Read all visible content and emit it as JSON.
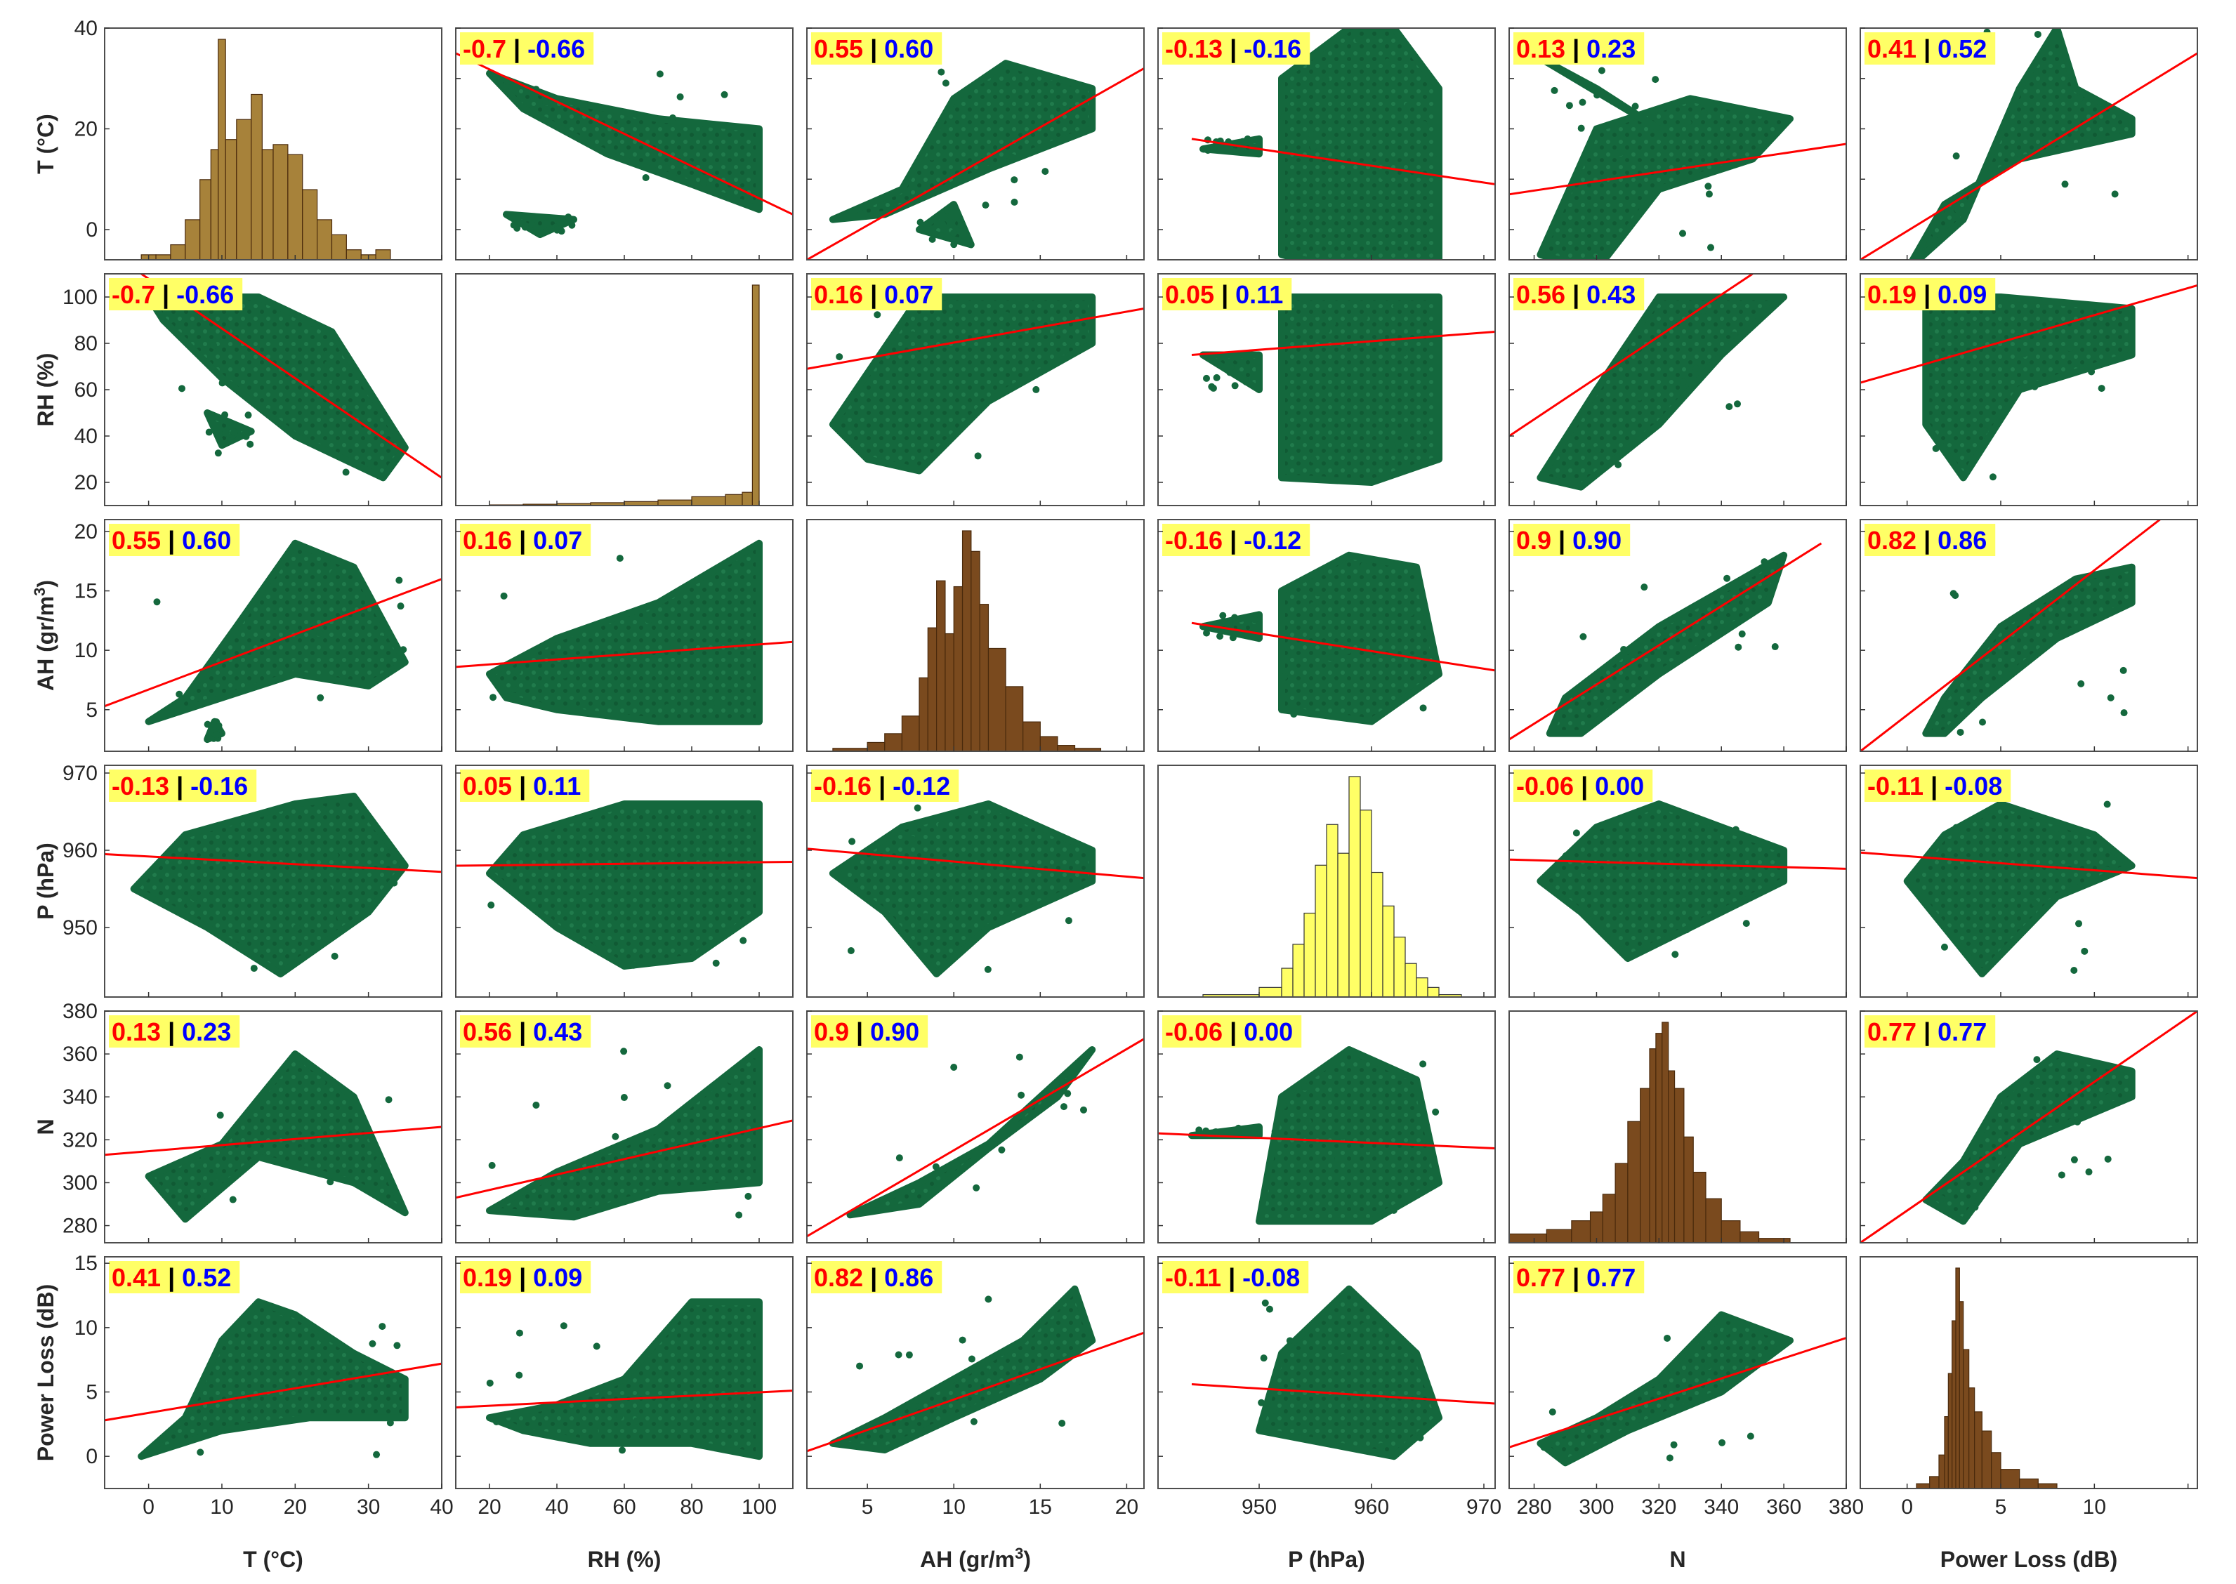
{
  "figure": {
    "kind": "scatter-matrix",
    "colors": {
      "scatter": "#14683d",
      "fit_line": "#ff0000",
      "hist_brown": "#7a4a1e",
      "hist_brown_edge": "#4a2a0c",
      "hist_gold": "#a7823a",
      "hist_yellow": "#ffff66",
      "corr_bg": "#ffff66",
      "corr_first": "#ff0000",
      "corr_second": "#0000ff",
      "corr_sep": "#000000"
    }
  },
  "chart_data": {
    "type": "scatter",
    "title": "",
    "variables": [
      {
        "id": "T",
        "label": "T (°C)",
        "label_prefix": "T (°C)",
        "label_sup": "",
        "label_suffix": "",
        "range": [
          -6,
          40
        ],
        "ticks": [
          0,
          10,
          20,
          30,
          40
        ],
        "ytick_show": [
          0,
          20,
          40
        ]
      },
      {
        "id": "RH",
        "label": "RH (%)",
        "label_prefix": "RH (%)",
        "label_sup": "",
        "label_suffix": "",
        "range": [
          10,
          110
        ],
        "ticks": [
          20,
          40,
          60,
          80,
          100
        ],
        "ytick_show": [
          20,
          40,
          60,
          80,
          100
        ]
      },
      {
        "id": "AH",
        "label": "AH (gr/m3)",
        "label_prefix": "AH (gr/m",
        "label_sup": "3",
        "label_suffix": ")",
        "range": [
          1.5,
          21
        ],
        "ticks": [
          5,
          10,
          15,
          20
        ],
        "ytick_show": [
          5,
          10,
          15,
          20
        ]
      },
      {
        "id": "P",
        "label": "P (hPa)",
        "label_prefix": "P (hPa)",
        "label_sup": "",
        "label_suffix": "",
        "range": [
          941,
          971
        ],
        "ticks": [
          950,
          960,
          970
        ],
        "ytick_show": [
          950,
          960,
          970
        ]
      },
      {
        "id": "N",
        "label": "N",
        "label_prefix": "N",
        "label_sup": "",
        "label_suffix": "",
        "range": [
          272,
          380
        ],
        "ticks": [
          280,
          300,
          320,
          340,
          360,
          380
        ],
        "ytick_show": [
          280,
          300,
          320,
          340,
          360,
          380
        ]
      },
      {
        "id": "PL",
        "label": "Power Loss (dB)",
        "label_prefix": "Power Loss (dB)",
        "label_sup": "",
        "label_suffix": "",
        "range": [
          -2.5,
          15.5
        ],
        "ticks": [
          0,
          5,
          10,
          15
        ],
        "xtick_show": [
          0,
          5,
          10
        ],
        "ytick_show": [
          0,
          5,
          10,
          15
        ]
      }
    ],
    "correlations": [
      {
        "pair": [
          "RH",
          "T"
        ],
        "r1": "-0.7",
        "r2": "-0.66"
      },
      {
        "pair": [
          "AH",
          "T"
        ],
        "r1": "0.55",
        "r2": "0.60"
      },
      {
        "pair": [
          "P",
          "T"
        ],
        "r1": "-0.13",
        "r2": "-0.16"
      },
      {
        "pair": [
          "N",
          "T"
        ],
        "r1": "0.13",
        "r2": "0.23"
      },
      {
        "pair": [
          "PL",
          "T"
        ],
        "r1": "0.41",
        "r2": "0.52"
      },
      {
        "pair": [
          "AH",
          "RH"
        ],
        "r1": "0.16",
        "r2": "0.07"
      },
      {
        "pair": [
          "P",
          "RH"
        ],
        "r1": "0.05",
        "r2": "0.11"
      },
      {
        "pair": [
          "N",
          "RH"
        ],
        "r1": "0.56",
        "r2": "0.43"
      },
      {
        "pair": [
          "PL",
          "RH"
        ],
        "r1": "0.19",
        "r2": "0.09"
      },
      {
        "pair": [
          "P",
          "AH"
        ],
        "r1": "-0.16",
        "r2": "-0.12"
      },
      {
        "pair": [
          "N",
          "AH"
        ],
        "r1": "0.9",
        "r2": "0.90"
      },
      {
        "pair": [
          "PL",
          "AH"
        ],
        "r1": "0.82",
        "r2": "0.86"
      },
      {
        "pair": [
          "N",
          "P"
        ],
        "r1": "-0.06",
        "r2": "0.00"
      },
      {
        "pair": [
          "PL",
          "P"
        ],
        "r1": "-0.11",
        "r2": "-0.08"
      },
      {
        "pair": [
          "PL",
          "N"
        ],
        "r1": "0.77",
        "r2": "0.77"
      }
    ],
    "corr_separator": "|",
    "fit_lines": [
      {
        "x": "RH",
        "y": "T",
        "points": [
          [
            10,
            35
          ],
          [
            110,
            3
          ]
        ]
      },
      {
        "x": "AH",
        "y": "T",
        "points": [
          [
            1.5,
            -6
          ],
          [
            21,
            32
          ]
        ]
      },
      {
        "x": "P",
        "y": "T",
        "points": [
          [
            944,
            18
          ],
          [
            971,
            9
          ]
        ]
      },
      {
        "x": "N",
        "y": "T",
        "points": [
          [
            272,
            7
          ],
          [
            380,
            17
          ]
        ]
      },
      {
        "x": "PL",
        "y": "T",
        "points": [
          [
            -2.5,
            -6
          ],
          [
            15.5,
            35
          ]
        ]
      },
      {
        "x": "T",
        "y": "RH",
        "points": [
          [
            -1,
            110
          ],
          [
            40,
            22
          ]
        ]
      },
      {
        "x": "AH",
        "y": "RH",
        "points": [
          [
            1.5,
            69
          ],
          [
            21,
            95
          ]
        ]
      },
      {
        "x": "P",
        "y": "RH",
        "points": [
          [
            944,
            75
          ],
          [
            971,
            85
          ]
        ]
      },
      {
        "x": "N",
        "y": "RH",
        "points": [
          [
            272,
            40
          ],
          [
            350,
            110
          ]
        ]
      },
      {
        "x": "PL",
        "y": "RH",
        "points": [
          [
            -2.5,
            63
          ],
          [
            15.5,
            105
          ]
        ]
      },
      {
        "x": "T",
        "y": "AH",
        "points": [
          [
            -6,
            5.3
          ],
          [
            40,
            16
          ]
        ]
      },
      {
        "x": "RH",
        "y": "AH",
        "points": [
          [
            10,
            8.6
          ],
          [
            110,
            10.7
          ]
        ]
      },
      {
        "x": "P",
        "y": "AH",
        "points": [
          [
            944,
            12.3
          ],
          [
            971,
            8.3
          ]
        ]
      },
      {
        "x": "N",
        "y": "AH",
        "points": [
          [
            272,
            2.5
          ],
          [
            372,
            19
          ]
        ]
      },
      {
        "x": "PL",
        "y": "AH",
        "points": [
          [
            -2.5,
            1.5
          ],
          [
            13.5,
            21
          ]
        ]
      },
      {
        "x": "T",
        "y": "P",
        "points": [
          [
            -6,
            959.5
          ],
          [
            40,
            957.2
          ]
        ]
      },
      {
        "x": "RH",
        "y": "P",
        "points": [
          [
            10,
            958
          ],
          [
            110,
            958.5
          ]
        ]
      },
      {
        "x": "AH",
        "y": "P",
        "points": [
          [
            1.5,
            960.2
          ],
          [
            21,
            956.4
          ]
        ]
      },
      {
        "x": "N",
        "y": "P",
        "points": [
          [
            272,
            958.8
          ],
          [
            380,
            957.6
          ]
        ]
      },
      {
        "x": "PL",
        "y": "P",
        "points": [
          [
            -2.5,
            959.7
          ],
          [
            15.5,
            956.4
          ]
        ]
      },
      {
        "x": "T",
        "y": "N",
        "points": [
          [
            -6,
            313
          ],
          [
            40,
            326
          ]
        ]
      },
      {
        "x": "RH",
        "y": "N",
        "points": [
          [
            10,
            293
          ],
          [
            110,
            329
          ]
        ]
      },
      {
        "x": "AH",
        "y": "N",
        "points": [
          [
            1.5,
            275
          ],
          [
            21,
            367
          ]
        ]
      },
      {
        "x": "P",
        "y": "N",
        "points": [
          [
            941,
            323
          ],
          [
            971,
            316
          ]
        ]
      },
      {
        "x": "PL",
        "y": "N",
        "points": [
          [
            -2.5,
            272
          ],
          [
            15.5,
            380
          ]
        ]
      },
      {
        "x": "T",
        "y": "PL",
        "points": [
          [
            -6,
            2.8
          ],
          [
            40,
            7.2
          ]
        ]
      },
      {
        "x": "RH",
        "y": "PL",
        "points": [
          [
            10,
            3.8
          ],
          [
            110,
            5.1
          ]
        ]
      },
      {
        "x": "AH",
        "y": "PL",
        "points": [
          [
            1.5,
            0.4
          ],
          [
            21,
            9.6
          ]
        ]
      },
      {
        "x": "P",
        "y": "PL",
        "points": [
          [
            944,
            5.6
          ],
          [
            971,
            4.1
          ]
        ]
      },
      {
        "x": "N",
        "y": "PL",
        "points": [
          [
            272,
            0.7
          ],
          [
            380,
            9.2
          ]
        ]
      }
    ],
    "histograms": [
      {
        "var": "T",
        "style": "gold",
        "bins": [
          -1,
          1,
          3,
          5,
          7,
          8.5,
          9.5,
          10.5,
          12,
          14,
          15.5,
          17,
          19,
          21,
          23,
          25,
          27,
          29,
          31,
          33
        ],
        "counts": [
          1,
          1,
          3,
          8,
          16,
          22,
          44,
          24,
          28,
          33,
          22,
          23,
          21,
          14,
          8,
          5,
          2,
          1,
          2
        ]
      },
      {
        "var": "RH",
        "style": "gold",
        "bins": [
          20,
          30,
          40,
          50,
          60,
          70,
          80,
          90,
          95,
          98,
          100
        ],
        "counts": [
          0.3,
          0.6,
          0.9,
          1.3,
          1.8,
          2.5,
          4,
          5,
          6,
          100
        ]
      },
      {
        "var": "AH",
        "style": "brown",
        "bins": [
          3,
          5,
          6,
          7,
          8,
          8.5,
          9,
          9.5,
          10,
          10.5,
          11,
          11.5,
          12,
          13,
          14,
          15,
          16,
          17,
          18.5
        ],
        "counts": [
          1,
          3,
          6,
          12,
          25,
          42,
          58,
          40,
          56,
          75,
          68,
          50,
          35,
          22,
          10,
          5,
          2,
          1
        ]
      },
      {
        "var": "P",
        "style": "yellow",
        "bins": [
          945,
          950,
          952,
          953,
          954,
          955,
          956,
          957,
          958,
          959,
          960,
          961,
          962,
          963,
          964,
          965,
          966,
          968
        ],
        "counts": [
          1,
          4,
          12,
          22,
          35,
          55,
          72,
          60,
          92,
          78,
          52,
          38,
          25,
          14,
          8,
          4,
          1
        ]
      },
      {
        "var": "N",
        "style": "brown",
        "bins": [
          272,
          284,
          292,
          298,
          302,
          306,
          310,
          314,
          317,
          319,
          321,
          323,
          325,
          328,
          331,
          335,
          340,
          346,
          352,
          362
        ],
        "counts": [
          4,
          6,
          10,
          14,
          22,
          36,
          55,
          70,
          88,
          95,
          100,
          78,
          70,
          48,
          32,
          20,
          10,
          5,
          2
        ]
      },
      {
        "var": "PL",
        "style": "brown",
        "bins": [
          0.5,
          1.2,
          1.7,
          2.0,
          2.2,
          2.4,
          2.6,
          2.8,
          3.0,
          3.3,
          3.6,
          4.0,
          4.5,
          5.0,
          6.0,
          7.0,
          8.0
        ],
        "counts": [
          2,
          5,
          14,
          30,
          48,
          70,
          92,
          78,
          58,
          42,
          32,
          24,
          15,
          8,
          4,
          2
        ]
      }
    ]
  }
}
